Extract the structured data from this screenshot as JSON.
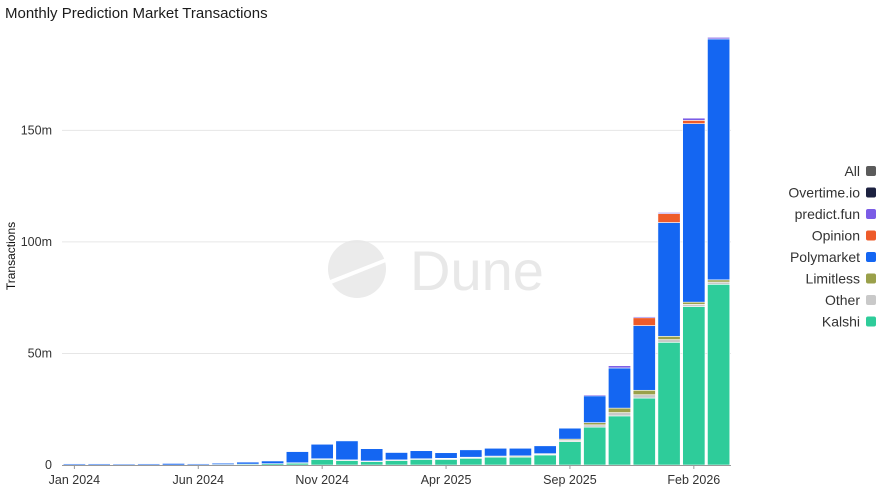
{
  "chart_data": {
    "type": "bar",
    "stacked": true,
    "title": "Monthly Prediction Market Transactions",
    "ylabel": "Transactions",
    "xlabel": "",
    "ylim": [
      0,
      195
    ],
    "y_unit": "m",
    "y_ticks": [
      0,
      50,
      100,
      150
    ],
    "y_tick_labels": [
      "0",
      "50m",
      "100m",
      "150m"
    ],
    "grid": true,
    "legend_position": "right",
    "watermark": "Dune",
    "categories": [
      "Jan 2024",
      "Feb 2024",
      "Mar 2024",
      "Apr 2024",
      "May 2024",
      "Jun 2024",
      "Jul 2024",
      "Aug 2024",
      "Sep 2024",
      "Oct 2024",
      "Nov 2024",
      "Dec 2024",
      "Jan 2025",
      "Feb 2025",
      "Mar 2025",
      "Apr 2025",
      "May 2025",
      "Jun 2025",
      "Jul 2025",
      "Aug 2025",
      "Sep 2025",
      "Oct 2025",
      "Nov 2025",
      "Dec 2025",
      "Jan 2026",
      "Feb 2026",
      "Mar 2026"
    ],
    "x_tick_labels": [
      {
        "index": 0,
        "label": "Jan 2024"
      },
      {
        "index": 5,
        "label": "Jun 2024"
      },
      {
        "index": 10,
        "label": "Nov 2024"
      },
      {
        "index": 15,
        "label": "Apr 2025"
      },
      {
        "index": 20,
        "label": "Sep 2025"
      },
      {
        "index": 25,
        "label": "Feb 2026"
      }
    ],
    "series": [
      {
        "name": "Kalshi",
        "color": "#2ecc9a",
        "values": [
          0,
          0,
          0,
          0,
          0,
          0.1,
          0.2,
          0.4,
          0.6,
          0.8,
          2.5,
          2.0,
          1.5,
          2.0,
          2.5,
          2.5,
          3.0,
          3.5,
          3.5,
          4.5,
          10.5,
          17,
          22,
          30,
          55,
          71,
          81
        ]
      },
      {
        "name": "Other",
        "color": "#c9c9c9",
        "values": [
          0,
          0,
          0,
          0,
          0,
          0,
          0,
          0,
          0,
          0.2,
          0.3,
          0.3,
          0.3,
          0.3,
          0.3,
          0.3,
          0.3,
          0.3,
          0.3,
          0.3,
          0.6,
          1.0,
          1.5,
          1.5,
          1.2,
          1.0,
          1.0
        ]
      },
      {
        "name": "Limitless",
        "color": "#9aa04a",
        "values": [
          0,
          0,
          0,
          0,
          0,
          0,
          0,
          0,
          0,
          0,
          0,
          0,
          0,
          0,
          0,
          0.2,
          0.2,
          0.2,
          0.3,
          0.3,
          0.5,
          1.0,
          2.0,
          2.0,
          1.5,
          1.0,
          1.0
        ]
      },
      {
        "name": "Polymarket",
        "color": "#1466f2",
        "values": [
          0.5,
          0.5,
          0.4,
          0.5,
          0.7,
          0.5,
          0.6,
          0.9,
          1.2,
          5.0,
          6.5,
          8.5,
          5.5,
          3.3,
          3.6,
          2.5,
          3.3,
          3.5,
          3.4,
          3.5,
          4.9,
          12.0,
          18.0,
          29.0,
          51.0,
          80.0,
          108.0
        ]
      },
      {
        "name": "Opinion",
        "color": "#ee5b2a",
        "values": [
          0,
          0,
          0,
          0,
          0,
          0,
          0,
          0,
          0,
          0,
          0,
          0,
          0,
          0,
          0,
          0,
          0,
          0,
          0,
          0,
          0,
          0,
          0,
          3.5,
          4.0,
          1.5,
          0
        ]
      },
      {
        "name": "predict.fun",
        "color": "#7b5ce6",
        "values": [
          0,
          0,
          0,
          0,
          0,
          0,
          0,
          0,
          0,
          0,
          0,
          0,
          0,
          0,
          0,
          0,
          0,
          0,
          0,
          0,
          0,
          0.5,
          1.0,
          0.5,
          0.5,
          1.0,
          0.7
        ]
      },
      {
        "name": "Overtime.io",
        "color": "#1c2140",
        "values": [
          0,
          0,
          0,
          0,
          0,
          0,
          0,
          0,
          0,
          0,
          0,
          0,
          0,
          0,
          0,
          0,
          0,
          0,
          0,
          0,
          0,
          0,
          0,
          0,
          0,
          0,
          0
        ]
      },
      {
        "name": "All",
        "color": "#5b5b5b",
        "values": [
          0,
          0,
          0,
          0,
          0,
          0,
          0,
          0,
          0,
          0,
          0,
          0,
          0,
          0,
          0,
          0,
          0,
          0,
          0,
          0,
          0,
          0,
          0,
          0,
          0,
          0,
          0
        ]
      }
    ],
    "legend": [
      {
        "name": "All",
        "color": "#5b5b5b"
      },
      {
        "name": "Overtime.io",
        "color": "#1c2140"
      },
      {
        "name": "predict.fun",
        "color": "#7b5ce6"
      },
      {
        "name": "Opinion",
        "color": "#ee5b2a"
      },
      {
        "name": "Polymarket",
        "color": "#1466f2"
      },
      {
        "name": "Limitless",
        "color": "#9aa04a"
      },
      {
        "name": "Other",
        "color": "#c9c9c9"
      },
      {
        "name": "Kalshi",
        "color": "#2ecc9a"
      }
    ]
  }
}
